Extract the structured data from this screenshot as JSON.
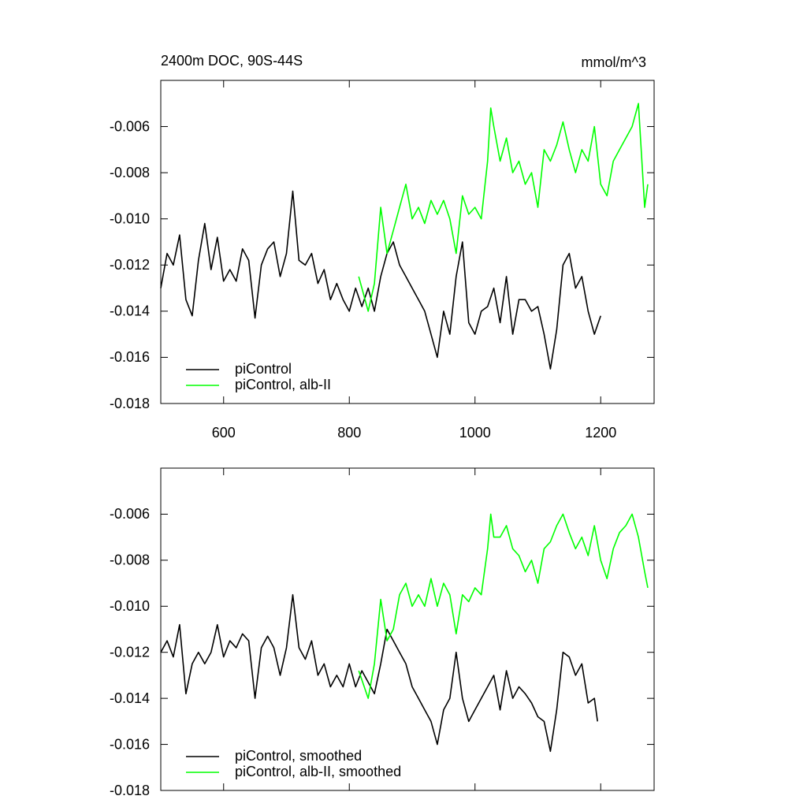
{
  "chart_data": [
    {
      "type": "line",
      "title": "2400m DOC, 90S-44S",
      "units": "mmol/m^3",
      "xlim": [
        500,
        1285
      ],
      "xticks": [
        600,
        800,
        1000,
        1200
      ],
      "xtick_labels": true,
      "ylim": [
        -0.018,
        -0.004
      ],
      "yticks": [
        -0.018,
        -0.016,
        -0.014,
        -0.012,
        {
          "value": -0.01,
          "label": "-0.010"
        },
        -0.008,
        -0.006
      ],
      "legend": "lower left",
      "series": [
        {
          "name": "piControl",
          "color": "#000000",
          "x": [
            500,
            510,
            520,
            530,
            540,
            550,
            560,
            570,
            580,
            590,
            600,
            610,
            620,
            630,
            640,
            650,
            660,
            670,
            680,
            690,
            700,
            710,
            720,
            730,
            740,
            750,
            760,
            770,
            780,
            790,
            800,
            810,
            820,
            830,
            840,
            850,
            860,
            870,
            880,
            890,
            900,
            910,
            920,
            930,
            940,
            950,
            960,
            970,
            980,
            990,
            1000,
            1010,
            1020,
            1030,
            1040,
            1050,
            1060,
            1070,
            1080,
            1090,
            1100,
            1110,
            1120,
            1130,
            1140,
            1150,
            1160,
            1170,
            1180,
            1190,
            1200
          ],
          "values": [
            -0.013,
            -0.0115,
            -0.012,
            -0.0107,
            -0.0135,
            -0.0142,
            -0.0118,
            -0.0102,
            -0.0122,
            -0.0108,
            -0.0127,
            -0.0122,
            -0.0127,
            -0.0113,
            -0.0118,
            -0.0143,
            -0.012,
            -0.0113,
            -0.011,
            -0.0125,
            -0.0115,
            -0.0088,
            -0.0118,
            -0.012,
            -0.0115,
            -0.0128,
            -0.0122,
            -0.0135,
            -0.0128,
            -0.0135,
            -0.014,
            -0.013,
            -0.0138,
            -0.013,
            -0.014,
            -0.0125,
            -0.0115,
            -0.011,
            -0.012,
            -0.0125,
            -0.013,
            -0.0135,
            -0.014,
            -0.015,
            -0.016,
            -0.014,
            -0.015,
            -0.0125,
            -0.011,
            -0.0145,
            -0.015,
            -0.014,
            -0.0138,
            -0.013,
            -0.0145,
            -0.0125,
            -0.015,
            -0.0135,
            -0.0135,
            -0.014,
            -0.0138,
            -0.015,
            -0.0165,
            -0.0148,
            -0.012,
            -0.0115,
            -0.013,
            -0.0125,
            -0.014,
            -0.015,
            -0.0142
          ]
        },
        {
          "name": "piControl, alb-II",
          "color": "#00ff00",
          "x": [
            815,
            830,
            840,
            850,
            860,
            870,
            880,
            890,
            900,
            910,
            920,
            930,
            940,
            950,
            960,
            970,
            980,
            990,
            1000,
            1010,
            1020,
            1025,
            1030,
            1040,
            1050,
            1060,
            1070,
            1080,
            1090,
            1100,
            1110,
            1120,
            1130,
            1140,
            1150,
            1160,
            1170,
            1180,
            1190,
            1200,
            1210,
            1220,
            1230,
            1240,
            1250,
            1260,
            1270,
            1275
          ],
          "values": [
            -0.0125,
            -0.014,
            -0.0128,
            -0.0095,
            -0.0115,
            -0.0105,
            -0.0095,
            -0.0085,
            -0.01,
            -0.0095,
            -0.0102,
            -0.0092,
            -0.0098,
            -0.0092,
            -0.01,
            -0.0115,
            -0.009,
            -0.0098,
            -0.0095,
            -0.01,
            -0.0075,
            -0.0052,
            -0.006,
            -0.0075,
            -0.0065,
            -0.008,
            -0.0075,
            -0.0085,
            -0.008,
            -0.0095,
            -0.007,
            -0.0075,
            -0.0068,
            -0.0058,
            -0.007,
            -0.008,
            -0.007,
            -0.0075,
            -0.006,
            -0.0085,
            -0.009,
            -0.0075,
            -0.007,
            -0.0065,
            -0.006,
            -0.005,
            -0.0095,
            -0.0085
          ]
        }
      ]
    },
    {
      "type": "line",
      "xlim": [
        500,
        1285
      ],
      "xticks": [
        600,
        800,
        1000,
        1200
      ],
      "xtick_labels": false,
      "ylim": [
        -0.018,
        -0.004
      ],
      "yticks": [
        -0.018,
        -0.016,
        -0.014,
        -0.012,
        {
          "value": -0.01,
          "label": "-0.010"
        },
        -0.008,
        -0.006
      ],
      "legend": "lower left",
      "series": [
        {
          "name": "piControl, smoothed",
          "color": "#000000",
          "x": [
            500,
            510,
            520,
            530,
            540,
            550,
            560,
            570,
            580,
            590,
            600,
            610,
            620,
            630,
            640,
            650,
            660,
            670,
            680,
            690,
            700,
            710,
            720,
            730,
            740,
            750,
            760,
            770,
            780,
            790,
            800,
            810,
            820,
            830,
            840,
            850,
            860,
            870,
            880,
            890,
            900,
            910,
            920,
            930,
            940,
            950,
            960,
            970,
            980,
            990,
            1000,
            1010,
            1020,
            1030,
            1040,
            1050,
            1060,
            1070,
            1080,
            1090,
            1100,
            1110,
            1120,
            1130,
            1140,
            1150,
            1160,
            1170,
            1180,
            1190,
            1195
          ],
          "values": [
            -0.012,
            -0.0115,
            -0.0122,
            -0.0108,
            -0.0138,
            -0.0125,
            -0.012,
            -0.0125,
            -0.012,
            -0.0108,
            -0.0122,
            -0.0115,
            -0.0118,
            -0.0112,
            -0.0115,
            -0.014,
            -0.0118,
            -0.0113,
            -0.0118,
            -0.013,
            -0.0118,
            -0.0095,
            -0.0118,
            -0.0123,
            -0.0115,
            -0.013,
            -0.0125,
            -0.0135,
            -0.013,
            -0.0135,
            -0.0125,
            -0.0135,
            -0.0128,
            -0.0133,
            -0.0138,
            -0.0125,
            -0.011,
            -0.0115,
            -0.012,
            -0.0125,
            -0.0135,
            -0.014,
            -0.0145,
            -0.015,
            -0.016,
            -0.0145,
            -0.014,
            -0.012,
            -0.014,
            -0.015,
            -0.0145,
            -0.014,
            -0.0135,
            -0.013,
            -0.0145,
            -0.0128,
            -0.014,
            -0.0135,
            -0.0138,
            -0.0142,
            -0.0148,
            -0.015,
            -0.0163,
            -0.0145,
            -0.012,
            -0.0122,
            -0.013,
            -0.0125,
            -0.0142,
            -0.014,
            -0.015
          ]
        },
        {
          "name": "piControl, alb-II, smoothed",
          "color": "#00ff00",
          "x": [
            815,
            830,
            840,
            850,
            860,
            870,
            880,
            890,
            900,
            910,
            920,
            930,
            940,
            950,
            960,
            970,
            980,
            990,
            1000,
            1010,
            1020,
            1025,
            1030,
            1040,
            1050,
            1060,
            1070,
            1080,
            1090,
            1100,
            1110,
            1120,
            1130,
            1140,
            1150,
            1160,
            1170,
            1180,
            1190,
            1200,
            1210,
            1220,
            1230,
            1240,
            1250,
            1260,
            1270,
            1275
          ],
          "values": [
            -0.0128,
            -0.014,
            -0.0125,
            -0.0097,
            -0.0115,
            -0.011,
            -0.0095,
            -0.009,
            -0.01,
            -0.0095,
            -0.01,
            -0.0088,
            -0.01,
            -0.009,
            -0.0095,
            -0.0112,
            -0.0095,
            -0.0098,
            -0.0092,
            -0.0095,
            -0.0075,
            -0.006,
            -0.007,
            -0.007,
            -0.0065,
            -0.0075,
            -0.0078,
            -0.0085,
            -0.008,
            -0.009,
            -0.0075,
            -0.0072,
            -0.0065,
            -0.006,
            -0.0068,
            -0.0075,
            -0.007,
            -0.0078,
            -0.0065,
            -0.008,
            -0.0088,
            -0.0075,
            -0.0068,
            -0.0065,
            -0.006,
            -0.007,
            -0.0085,
            -0.0092
          ]
        }
      ]
    }
  ]
}
